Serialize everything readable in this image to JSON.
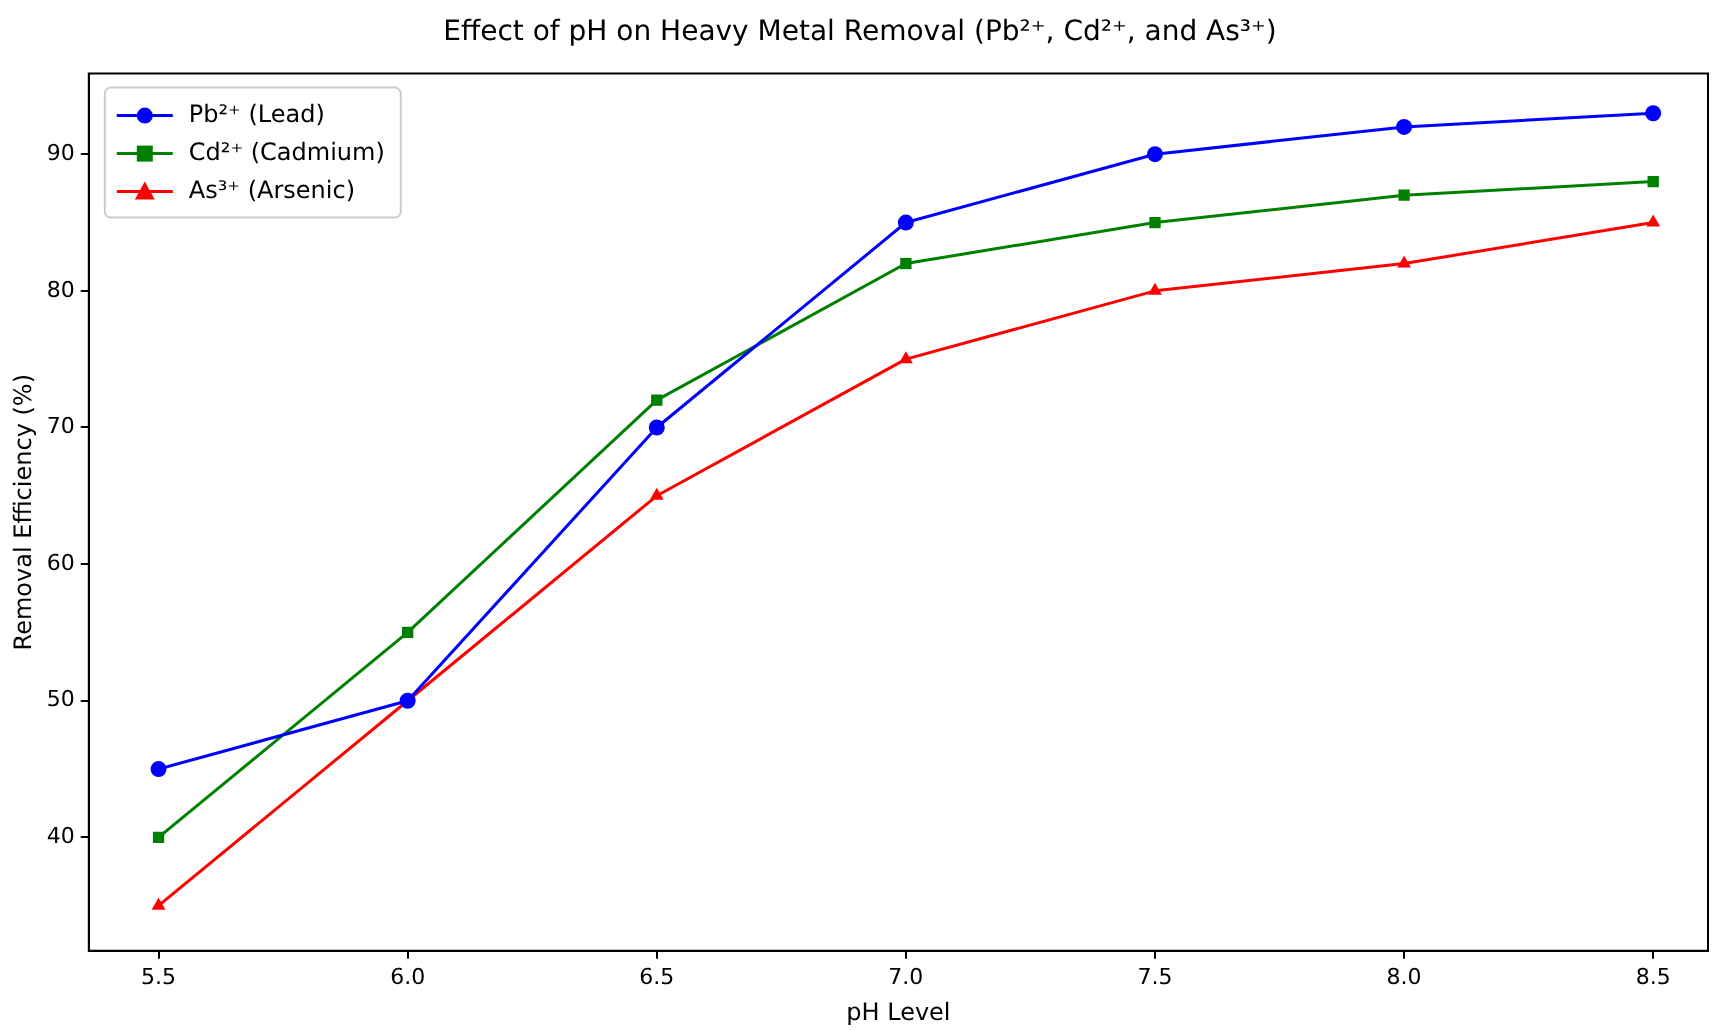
{
  "chart_data": {
    "type": "line",
    "title": "Effect of pH on Heavy Metal Removal (Pb²⁺, Cd²⁺, and As³⁺)",
    "xlabel": "pH Level",
    "ylabel": "Removal Efficiency (%)",
    "x": [
      5.5,
      6.0,
      6.5,
      7.0,
      7.5,
      8.0,
      8.5
    ],
    "series": [
      {
        "name": "Pb²⁺ (Lead)",
        "color": "#0000ff",
        "marker": "circle",
        "values": [
          45,
          50,
          70,
          85,
          90,
          92,
          93
        ]
      },
      {
        "name": "Cd²⁺ (Cadmium)",
        "color": "#008000",
        "marker": "square",
        "values": [
          40,
          55,
          72,
          82,
          85,
          87,
          88
        ]
      },
      {
        "name": "As³⁺ (Arsenic)",
        "color": "#ff0000",
        "marker": "triangle",
        "values": [
          35,
          50,
          65,
          75,
          80,
          82,
          85
        ]
      }
    ],
    "xlim": [
      5.36,
      8.61
    ],
    "ylim": [
      31.7,
      95.9
    ],
    "xticks": [
      5.5,
      {
        "value": 6,
        "label": "6.0"
      },
      6.5,
      {
        "value": 7,
        "label": "7.0"
      },
      7.5,
      {
        "value": 8,
        "label": "8.0"
      },
      8.5
    ],
    "yticks": [
      40,
      50,
      60,
      70,
      80,
      90
    ],
    "grid": false,
    "legend": "top left",
    "line_style": "solid"
  }
}
